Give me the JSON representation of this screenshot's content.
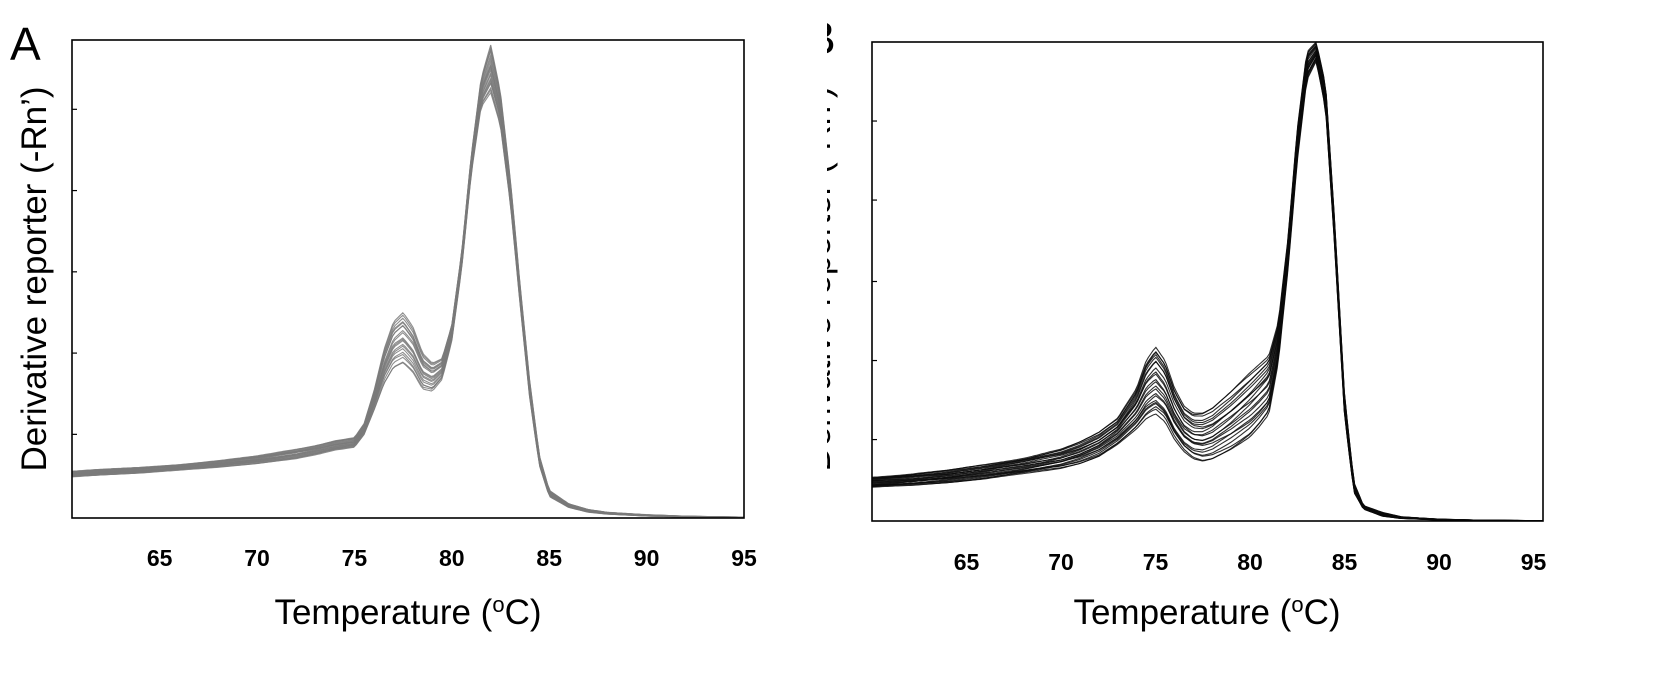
{
  "chart_data": [
    {
      "type": "line",
      "panel_label": "A",
      "xlabel": "Temperature (",
      "xlabel_sup": "o",
      "xlabel_end": "C)",
      "ylabel": "Derivative reporter (-Rn’)",
      "xlim": [
        60.5,
        95
      ],
      "ylim": [
        0,
        1
      ],
      "x_ticks": [
        65,
        70,
        75,
        80,
        85,
        90,
        95
      ],
      "y_tick_values": [
        0.175,
        0.345,
        0.515,
        0.685,
        0.855
      ],
      "y_tick_labels_shown": false,
      "grid": false,
      "legend": "none",
      "line_color": "#7a7a7a",
      "n_curves": 20,
      "envelope": {
        "x": [
          60.5,
          62,
          64,
          66,
          68,
          70,
          72,
          73,
          74,
          75,
          75.5,
          76,
          76.5,
          77,
          77.5,
          78,
          78.5,
          79,
          79.5,
          80,
          80.5,
          81,
          81.5,
          82,
          82.5,
          83,
          83.5,
          84,
          84.5,
          85,
          86,
          87,
          88,
          90,
          92,
          95
        ],
        "low": [
          0.086,
          0.09,
          0.094,
          0.1,
          0.106,
          0.114,
          0.124,
          0.132,
          0.142,
          0.148,
          0.175,
          0.225,
          0.28,
          0.315,
          0.325,
          0.305,
          0.27,
          0.265,
          0.29,
          0.37,
          0.52,
          0.72,
          0.86,
          0.89,
          0.82,
          0.66,
          0.45,
          0.25,
          0.11,
          0.045,
          0.022,
          0.012,
          0.008,
          0.004,
          0.002,
          0.001
        ],
        "high": [
          0.098,
          0.102,
          0.106,
          0.112,
          0.12,
          0.13,
          0.144,
          0.152,
          0.162,
          0.168,
          0.198,
          0.265,
          0.35,
          0.41,
          0.43,
          0.4,
          0.345,
          0.325,
          0.335,
          0.405,
          0.555,
          0.76,
          0.92,
          0.99,
          0.89,
          0.71,
          0.49,
          0.285,
          0.13,
          0.058,
          0.03,
          0.018,
          0.012,
          0.007,
          0.004,
          0.002
        ]
      }
    },
    {
      "type": "line",
      "panel_label": "B",
      "xlabel": "Temperature (",
      "xlabel_sup": "o",
      "xlabel_end": "C)",
      "ylabel": "Derivative reporter (-Rn’)",
      "xlim": [
        60,
        95.5
      ],
      "ylim": [
        0,
        1
      ],
      "x_ticks": [
        65,
        70,
        75,
        80,
        85,
        90,
        95
      ],
      "y_tick_values": [
        0.17,
        0.335,
        0.5,
        0.67,
        0.835
      ],
      "y_tick_labels_shown": false,
      "grid": false,
      "legend": "none",
      "line_color": "#0a0a0a",
      "n_curves": 22,
      "envelope": {
        "x": [
          60,
          62,
          64,
          66,
          68,
          70,
          71,
          72,
          73,
          74,
          74.5,
          75,
          75.5,
          76,
          76.5,
          77,
          77.5,
          78,
          79,
          80,
          80.5,
          81,
          81.5,
          82,
          82.5,
          83,
          83.5,
          84,
          84.5,
          85,
          85.5,
          86,
          87,
          88,
          90,
          92,
          95
        ],
        "low": [
          0.07,
          0.074,
          0.08,
          0.088,
          0.098,
          0.11,
          0.12,
          0.135,
          0.16,
          0.19,
          0.21,
          0.22,
          0.205,
          0.17,
          0.145,
          0.13,
          0.125,
          0.13,
          0.15,
          0.175,
          0.195,
          0.22,
          0.33,
          0.52,
          0.75,
          0.92,
          0.96,
          0.86,
          0.56,
          0.22,
          0.06,
          0.025,
          0.01,
          0.005,
          0.002,
          0.001,
          0.0
        ],
        "high": [
          0.092,
          0.098,
          0.106,
          0.118,
          0.132,
          0.15,
          0.165,
          0.185,
          0.215,
          0.28,
          0.34,
          0.37,
          0.34,
          0.28,
          0.24,
          0.225,
          0.225,
          0.235,
          0.27,
          0.31,
          0.33,
          0.35,
          0.42,
          0.59,
          0.82,
          0.98,
          1.0,
          0.91,
          0.61,
          0.26,
          0.08,
          0.032,
          0.018,
          0.009,
          0.004,
          0.002,
          0.001
        ]
      }
    }
  ]
}
